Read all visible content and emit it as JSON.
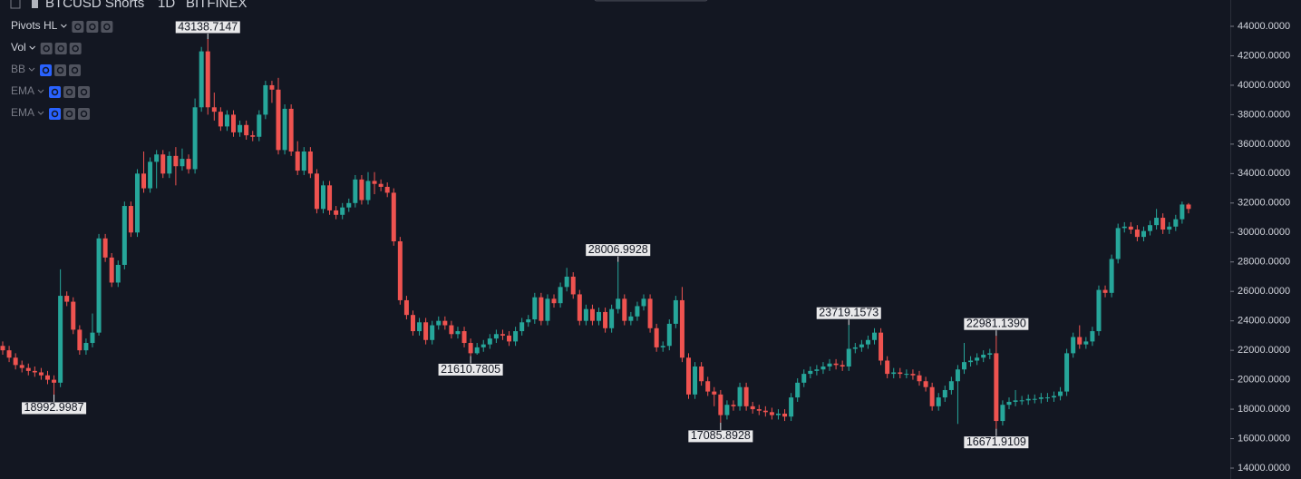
{
  "chart_data": {
    "type": "candlestick",
    "title": "BTCUSD Shorts",
    "interval": "1D",
    "exchange": "BITFINEX",
    "indicators": [
      "Pivots HL",
      "Vol",
      "BB",
      "EMA",
      "EMA"
    ],
    "indicator_visible": [
      true,
      true,
      false,
      false,
      false
    ],
    "up_color": "#26a69a",
    "down_color": "#ef5350",
    "ylim": [
      13261,
      45787
    ],
    "yticks": [
      {
        "value": 14000,
        "label": "14000.0000"
      },
      {
        "value": 16000,
        "label": "16000.0000"
      },
      {
        "value": 18000,
        "label": "18000.0000"
      },
      {
        "value": 20000,
        "label": "20000.0000"
      },
      {
        "value": 22000,
        "label": "22000.0000"
      },
      {
        "value": 24000,
        "label": "24000.0000"
      },
      {
        "value": 26000,
        "label": "26000.0000"
      },
      {
        "value": 28000,
        "label": "28000.0000"
      },
      {
        "value": 30000,
        "label": "30000.0000"
      },
      {
        "value": 32000,
        "label": "32000.0000"
      },
      {
        "value": 34000,
        "label": "34000.0000"
      },
      {
        "value": 36000,
        "label": "36000.0000"
      },
      {
        "value": 38000,
        "label": "38000.0000"
      },
      {
        "value": 40000,
        "label": "40000.0000"
      },
      {
        "value": 42000,
        "label": "42000.0000"
      },
      {
        "value": 44000,
        "label": "44000.0000"
      }
    ],
    "open": [
      22300,
      22000,
      21500,
      21000,
      20800,
      20600,
      20500,
      20300,
      20000,
      19800,
      25700,
      25300,
      23400,
      22000,
      22500,
      23200,
      29600,
      28300,
      26600,
      27800,
      31800,
      30000,
      34000,
      33000,
      34800,
      35300,
      34000,
      35200,
      34500,
      35000,
      34300,
      38500,
      42300,
      38500,
      38200,
      37200,
      38000,
      36800,
      37300,
      36600,
      36500,
      38000,
      40000,
      39700,
      35600,
      38400,
      35500,
      34200,
      35500,
      34000,
      31600,
      33200,
      31500,
      31200,
      31700,
      32000,
      33600,
      32200,
      33500,
      33300,
      33100,
      32700,
      29400,
      25400,
      24400,
      23300,
      23900,
      22700,
      23700,
      24000,
      23700,
      23100,
      23300,
      22500,
      21800,
      22200,
      22400,
      22800,
      23100,
      23000,
      22600,
      23300,
      23900,
      24100,
      25600,
      24000,
      25500,
      25200,
      26300,
      27000,
      25800,
      24000,
      24800,
      24000,
      24600,
      23500,
      24800,
      25500,
      24000,
      24300,
      25000,
      25500,
      23500,
      22200,
      22300,
      23800,
      25400,
      21500,
      19000,
      20900,
      19900,
      19200,
      19000,
      17600,
      18300,
      18200,
      19500,
      18200,
      18000,
      17900,
      17800,
      17600,
      17700,
      17500,
      18800,
      19800,
      20400,
      20600,
      20700,
      20900,
      21100,
      21000,
      20900,
      22100,
      22200,
      22400,
      22700,
      23200,
      21300,
      20400,
      20500,
      20400,
      20400,
      20300,
      19900,
      19500,
      18200,
      18800,
      19300,
      19900,
      20700,
      21200,
      21300,
      21500,
      21700,
      21800,
      17200,
      18300,
      18500,
      18600,
      18600,
      18700,
      18700,
      18800,
      18800,
      18900,
      19200,
      21800,
      22900,
      22400,
      22600,
      23300,
      26100,
      25900,
      28200,
      30300,
      30400,
      30200,
      29700,
      30100,
      30500,
      31000,
      30200,
      30400,
      30900,
      31900
    ],
    "high": [
      22600,
      22300,
      21800,
      21300,
      21100,
      20900,
      20800,
      20600,
      20300,
      27500,
      26000,
      25600,
      23700,
      22800,
      24500,
      29900,
      29900,
      28600,
      28100,
      32100,
      32100,
      34300,
      35500,
      35100,
      35600,
      35600,
      35500,
      35800,
      35700,
      35300,
      39100,
      42600,
      43138.7147,
      39500,
      38500,
      38300,
      38300,
      37600,
      37600,
      36900,
      38300,
      40300,
      40300,
      40500,
      38700,
      38700,
      36200,
      35800,
      35800,
      34300,
      33500,
      33500,
      31800,
      32000,
      32300,
      33900,
      33900,
      34100,
      34100,
      33600,
      33400,
      33000,
      29700,
      25700,
      24700,
      24200,
      24200,
      24000,
      24300,
      24300,
      24000,
      23600,
      23600,
      22800,
      22500,
      22700,
      23100,
      23400,
      23400,
      23300,
      23600,
      24200,
      24400,
      25900,
      25900,
      25800,
      25800,
      26600,
      27600,
      27300,
      26100,
      25100,
      25100,
      24900,
      24900,
      25100,
      28006.9928,
      25800,
      24600,
      25300,
      25800,
      25800,
      23800,
      22600,
      24100,
      25700,
      26300,
      21800,
      21200,
      21200,
      20200,
      19500,
      19300,
      18600,
      18600,
      19800,
      19800,
      18500,
      18300,
      18200,
      18100,
      18000,
      18000,
      19100,
      20100,
      20700,
      20900,
      21000,
      21200,
      21400,
      21400,
      21300,
      23719.1573,
      22500,
      22700,
      23000,
      23500,
      23500,
      21600,
      20800,
      20800,
      20700,
      20700,
      20600,
      20200,
      19800,
      19100,
      19600,
      20200,
      21000,
      22500,
      21600,
      21800,
      22000,
      22100,
      22981.139,
      18600,
      18800,
      19300,
      18900,
      19000,
      19000,
      19100,
      19100,
      19200,
      19500,
      22100,
      23200,
      23700,
      22900,
      23600,
      26400,
      26400,
      28500,
      30600,
      30700,
      30700,
      30500,
      30400,
      30800,
      31600,
      31300,
      30700,
      31200,
      32100,
      32000
    ],
    "low": [
      21700,
      21200,
      20700,
      20500,
      20300,
      20200,
      20000,
      19700,
      18992.9987,
      19500,
      25000,
      23100,
      21700,
      21700,
      22200,
      23000,
      28000,
      26300,
      26300,
      27500,
      29700,
      29700,
      32700,
      32700,
      33000,
      33700,
      33700,
      33200,
      34200,
      34000,
      34000,
      38200,
      38000,
      37600,
      36900,
      36900,
      36500,
      36500,
      36300,
      36200,
      36200,
      37700,
      38800,
      35300,
      35300,
      35200,
      33900,
      33900,
      33700,
      31300,
      31300,
      31200,
      30900,
      30900,
      31400,
      31700,
      31900,
      31900,
      32600,
      32800,
      32400,
      29100,
      25100,
      24100,
      23000,
      23000,
      22400,
      22400,
      23400,
      23400,
      22800,
      22800,
      22200,
      21610.7805,
      21700,
      21900,
      22100,
      22500,
      22700,
      22300,
      22300,
      23000,
      23600,
      23800,
      23700,
      23700,
      24900,
      24900,
      26000,
      25500,
      23700,
      23700,
      23700,
      23700,
      23200,
      23200,
      24500,
      23700,
      23700,
      24000,
      24700,
      23200,
      21900,
      21900,
      22000,
      23500,
      21200,
      18700,
      18700,
      19600,
      18900,
      18200,
      17085.8928,
      17300,
      17900,
      17900,
      17900,
      17700,
      17600,
      17500,
      17300,
      17300,
      17200,
      17200,
      18500,
      19500,
      20100,
      20300,
      20400,
      20600,
      20700,
      20600,
      20600,
      21800,
      21900,
      22100,
      22400,
      21000,
      20100,
      20100,
      20100,
      20100,
      20000,
      19600,
      19200,
      17900,
      17900,
      18500,
      19000,
      17000,
      20400,
      20900,
      21000,
      21200,
      21400,
      16671.9109,
      16900,
      18000,
      18200,
      18300,
      18300,
      18400,
      18400,
      18500,
      18500,
      18600,
      18900,
      21500,
      22100,
      22100,
      22300,
      23000,
      25600,
      25600,
      27900,
      30000,
      29900,
      29400,
      29400,
      29800,
      30200,
      29900,
      29900,
      30100,
      30600,
      31300
    ],
    "close": [
      22000,
      21500,
      21000,
      20800,
      20600,
      20500,
      20300,
      20000,
      19800,
      25700,
      25300,
      23400,
      22000,
      22500,
      23200,
      29600,
      28300,
      26600,
      27800,
      31800,
      30000,
      34000,
      33000,
      34800,
      35300,
      34000,
      35200,
      34500,
      35000,
      34300,
      38500,
      42300,
      38500,
      38200,
      37200,
      38000,
      36800,
      37300,
      36600,
      36500,
      38000,
      40000,
      39700,
      35600,
      38400,
      35500,
      34200,
      35500,
      34000,
      31600,
      33200,
      31500,
      31200,
      31700,
      32000,
      33600,
      32200,
      33500,
      33300,
      33100,
      32700,
      29400,
      25400,
      24400,
      23300,
      23900,
      22700,
      23700,
      24000,
      23700,
      23100,
      23300,
      22500,
      21800,
      22200,
      22400,
      22800,
      23100,
      23000,
      22600,
      23300,
      23900,
      24100,
      25600,
      24000,
      25500,
      25200,
      26300,
      27000,
      25800,
      24000,
      24800,
      24000,
      24600,
      23500,
      24800,
      25500,
      24000,
      24300,
      25000,
      25500,
      23500,
      22200,
      22300,
      23800,
      25400,
      21500,
      19000,
      20900,
      19900,
      19200,
      19000,
      17600,
      18300,
      18200,
      19500,
      18200,
      18000,
      17900,
      17800,
      17600,
      17700,
      17500,
      18800,
      19800,
      20400,
      20600,
      20700,
      20900,
      21100,
      21000,
      20900,
      22100,
      22200,
      22400,
      22700,
      23200,
      21300,
      20400,
      20500,
      20400,
      20400,
      20300,
      19900,
      19500,
      18200,
      18800,
      19300,
      19900,
      20700,
      21200,
      21300,
      21500,
      21700,
      21800,
      17200,
      18300,
      18500,
      18600,
      18600,
      18700,
      18700,
      18800,
      18800,
      18900,
      19200,
      21800,
      22900,
      22400,
      22600,
      23300,
      26100,
      25900,
      28200,
      30300,
      30400,
      30200,
      29700,
      30100,
      30500,
      31000,
      30200,
      30400,
      30900,
      31900,
      31600
    ],
    "high_labels": [
      null,
      null,
      null,
      null,
      null,
      null,
      null,
      null,
      null,
      null,
      null,
      null,
      null,
      null,
      null,
      null,
      null,
      null,
      null,
      null,
      null,
      null,
      null,
      null,
      null,
      null,
      null,
      null,
      null,
      null,
      null,
      null,
      "43138.7147",
      null,
      null,
      null,
      null,
      null,
      null,
      null,
      null,
      null,
      null,
      null,
      null,
      null,
      null,
      null,
      null,
      null,
      null,
      null,
      null,
      null,
      null,
      null,
      null,
      null,
      null,
      null,
      null,
      null,
      null,
      null,
      null,
      null,
      null,
      null,
      null,
      null,
      null,
      null,
      null,
      null,
      null,
      null,
      null,
      null,
      null,
      null,
      null,
      null,
      null,
      null,
      null,
      null,
      null,
      null,
      null,
      null,
      null,
      null,
      null,
      null,
      null,
      null,
      "28006.9928",
      null,
      null,
      null,
      null,
      null,
      null,
      null,
      null,
      null,
      null,
      null,
      null,
      null,
      null,
      null,
      null,
      null,
      null,
      null,
      null,
      null,
      null,
      null,
      null,
      null,
      null,
      null,
      null,
      null,
      null,
      null,
      null,
      null,
      null,
      null,
      "23719.1573",
      null,
      null,
      null,
      null,
      null,
      null,
      null,
      null,
      null,
      null,
      null,
      null,
      null,
      null,
      null,
      null,
      null,
      null,
      null,
      null,
      null,
      null,
      "22981.1390",
      null,
      null,
      null,
      null,
      null,
      null,
      null,
      null,
      null,
      null,
      null,
      null,
      null,
      null,
      null,
      null,
      null,
      null,
      null,
      null,
      null,
      null,
      null,
      null,
      null,
      null,
      null,
      null,
      null,
      null
    ],
    "low_labels": [
      null,
      null,
      null,
      null,
      null,
      null,
      null,
      null,
      "18992.9987",
      null,
      null,
      null,
      null,
      null,
      null,
      null,
      null,
      null,
      null,
      null,
      null,
      null,
      null,
      null,
      null,
      null,
      null,
      null,
      null,
      null,
      null,
      null,
      null,
      null,
      null,
      null,
      null,
      null,
      null,
      null,
      null,
      null,
      null,
      null,
      null,
      null,
      null,
      null,
      null,
      null,
      null,
      null,
      null,
      null,
      null,
      null,
      null,
      null,
      null,
      null,
      null,
      null,
      null,
      null,
      null,
      null,
      null,
      null,
      null,
      null,
      null,
      null,
      null,
      "21610.7805",
      null,
      null,
      null,
      null,
      null,
      null,
      null,
      null,
      null,
      null,
      null,
      null,
      null,
      null,
      null,
      null,
      null,
      null,
      null,
      null,
      null,
      null,
      null,
      null,
      null,
      null,
      null,
      null,
      null,
      null,
      null,
      null,
      null,
      null,
      null,
      null,
      null,
      null,
      "17085.8928",
      null,
      null,
      null,
      null,
      null,
      null,
      null,
      null,
      null,
      null,
      null,
      null,
      null,
      null,
      null,
      null,
      null,
      null,
      null,
      null,
      null,
      null,
      null,
      null,
      null,
      null,
      null,
      null,
      null,
      null,
      null,
      null,
      null,
      null,
      null,
      null,
      null,
      null,
      null,
      null,
      null,
      null,
      "16671.9109",
      null,
      null,
      null,
      null,
      null,
      null,
      null,
      null,
      null,
      null,
      null,
      null,
      null,
      null,
      null,
      null,
      null,
      null,
      null,
      null,
      null,
      null,
      null,
      null,
      null,
      null,
      null,
      null,
      null,
      null
    ]
  }
}
